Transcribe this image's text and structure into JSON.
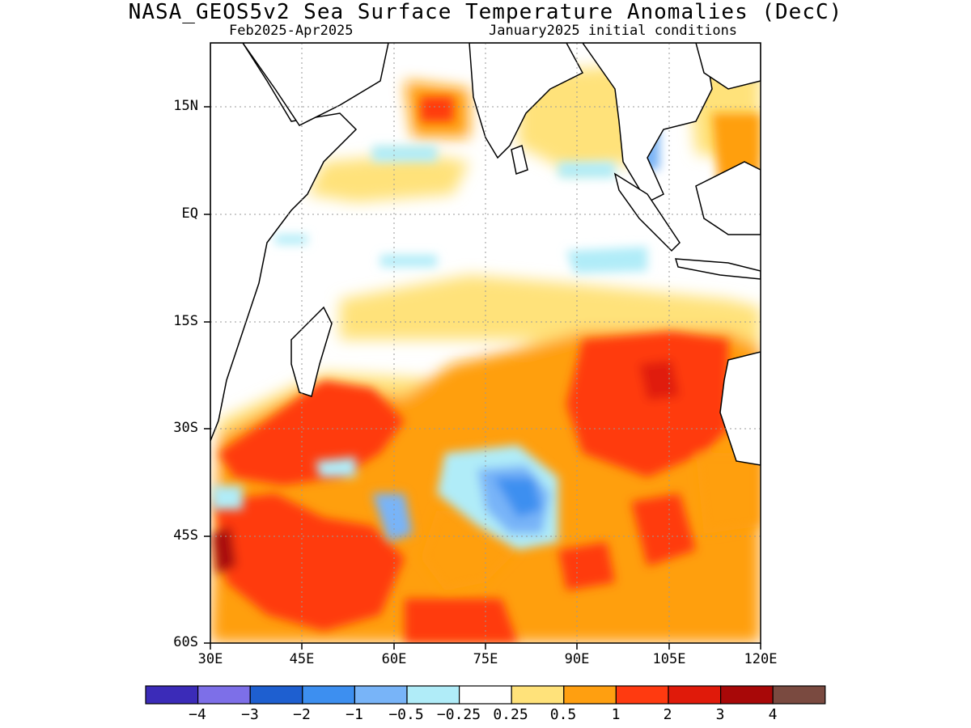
{
  "figure": {
    "title": "NASA_GEOS5v2 Sea Surface Temperature Anomalies (DecC)",
    "period": "Feb2025-Apr2025",
    "init": "January2025 initial conditions"
  },
  "axes": {
    "lat_labels": [
      "15N",
      "EQ",
      "15S",
      "30S",
      "45S",
      "60S"
    ],
    "lon_labels": [
      "30E",
      "45E",
      "60E",
      "75E",
      "90E",
      "105E",
      "120E"
    ],
    "lat_range": [
      -60,
      24
    ],
    "lon_range": [
      30,
      120
    ]
  },
  "colorbar": {
    "labels": [
      "−4",
      "−3",
      "−2",
      "−1",
      "−0.5",
      "−0.25",
      "0.25",
      "0.5",
      "1",
      "2",
      "3",
      "4"
    ],
    "colors": [
      "#3b2bb8",
      "#7d6fe8",
      "#1e5fd0",
      "#3d8ff0",
      "#78b4f8",
      "#b0ecf8",
      "#ffffff",
      "#ffe27a",
      "#ff9f10",
      "#ff3a10",
      "#e01a0a",
      "#a80808",
      "#7a4a40"
    ]
  },
  "chart_data": {
    "type": "heatmap",
    "variable": "Sea Surface Temperature Anomalies",
    "units": "DecC",
    "lon_range": [
      30,
      120
    ],
    "lat_range": [
      -60,
      24
    ],
    "levels": [
      -4,
      -3,
      -2,
      -1,
      -0.5,
      -0.25,
      0.25,
      0.5,
      1,
      2,
      3,
      4
    ],
    "regions": [
      {
        "name": "warm",
        "lon": [
          93,
          110
        ],
        "lat": [
          -35,
          -17
        ],
        "anom": 2.0
      },
      {
        "name": "warm",
        "lon": [
          30,
          60
        ],
        "lat": [
          -60,
          -35
        ],
        "anom": 1.6
      },
      {
        "name": "warm",
        "lon": [
          45,
          60
        ],
        "lat": [
          -32,
          -22
        ],
        "anom": 1.5
      },
      {
        "name": "warm",
        "lon": [
          80,
          93
        ],
        "lat": [
          -28,
          -15
        ],
        "anom": 0.9
      },
      {
        "name": "warm",
        "lon": [
          40,
          75
        ],
        "lat": [
          -28,
          -13
        ],
        "anom": 0.6
      },
      {
        "name": "warm",
        "lon": [
          70,
          120
        ],
        "lat": [
          -12,
          -8
        ],
        "anom": 0.4
      },
      {
        "name": "warm",
        "lon": [
          60,
          95
        ],
        "lat": [
          -60,
          -45
        ],
        "anom": 1.2
      },
      {
        "name": "cool",
        "lon": [
          75,
          90
        ],
        "lat": [
          -44,
          -36
        ],
        "anom": -1.2
      },
      {
        "name": "cool",
        "lon": [
          60,
          65
        ],
        "lat": [
          -45,
          -40
        ],
        "anom": -0.9
      },
      {
        "name": "cool",
        "lon": [
          58,
          64
        ],
        "lat": [
          10,
          8
        ],
        "anom": -0.4
      },
      {
        "name": "cool",
        "lon": [
          88,
          96
        ],
        "lat": [
          -6,
          -8
        ],
        "anom": -0.4
      },
      {
        "name": "warm",
        "lon": [
          63,
          72
        ],
        "lat": [
          18,
          12
        ],
        "anom": 0.8
      },
      {
        "name": "warm",
        "lon": [
          82,
          92
        ],
        "lat": [
          18,
          12
        ],
        "anom": 0.7
      }
    ]
  }
}
